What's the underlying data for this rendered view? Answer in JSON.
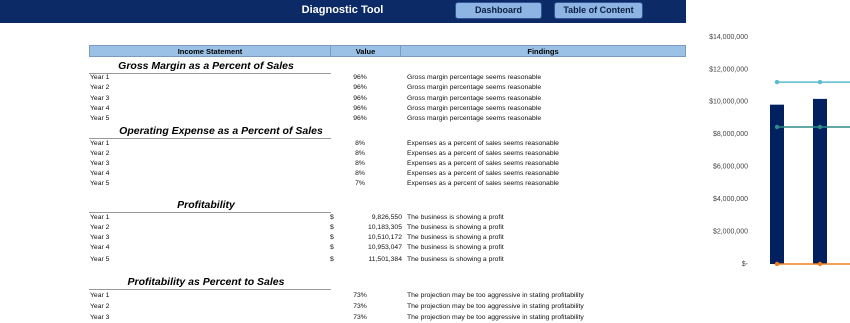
{
  "header": {
    "title": "Diagnostic Tool",
    "buttons": [
      "Dashboard",
      "Table of Content"
    ]
  },
  "table": {
    "columns": [
      "Income Statement",
      "Value",
      "Findings"
    ],
    "sections": [
      {
        "title": "Gross Margin as a Percent of Sales",
        "rows": [
          [
            "Year 1",
            "96%",
            "Gross margin percentage seems reasonable"
          ],
          [
            "Year 2",
            "96%",
            "Gross margin percentage seems reasonable"
          ],
          [
            "Year 3",
            "96%",
            "Gross margin percentage seems reasonable"
          ],
          [
            "Year 4",
            "96%",
            "Gross margin percentage seems reasonable"
          ],
          [
            "Year 5",
            "96%",
            "Gross margin percentage seems reasonable"
          ]
        ]
      },
      {
        "title": "Operating Expense as a Percent of Sales",
        "rows": [
          [
            "Year 1",
            "8%",
            "Expenses as a percent of sales seems reasonable"
          ],
          [
            "Year 2",
            "8%",
            "Expenses as a percent of sales seems reasonable"
          ],
          [
            "Year 3",
            "8%",
            "Expenses as a percent of sales seems reasonable"
          ],
          [
            "Year 4",
            "8%",
            "Expenses as a percent of sales seems reasonable"
          ],
          [
            "Year 5",
            "7%",
            "Expenses as a percent of sales seems reasonable"
          ]
        ]
      },
      {
        "title": "Profitability",
        "currency": "$",
        "rows": [
          [
            "Year 1",
            "9,826,550",
            "The business is showing a profit"
          ],
          [
            "Year 2",
            "10,183,305",
            "The business is showing a profit"
          ],
          [
            "Year 3",
            "10,510,172",
            "The business is showing a profit"
          ],
          [
            "Year 4",
            "10,953,047",
            "The business is showing a profit"
          ],
          [
            "Year 5",
            "11,501,384",
            "The business is showing a profit"
          ]
        ]
      },
      {
        "title": "Profitability as Percent to Sales",
        "rows": [
          [
            "Year 1",
            "73%",
            "The projection may be too aggressive in stating profitability"
          ],
          [
            "Year 2",
            "73%",
            "The projection may be too aggressive in stating profitability"
          ],
          [
            "Year 3",
            "73%",
            "The projection may be too aggressive in stating profitability"
          ]
        ]
      }
    ]
  },
  "chart_data": {
    "type": "bar",
    "categories": [
      null,
      null
    ],
    "series": [
      {
        "type": "bar",
        "color": "#002060",
        "values": [
          9826550,
          10183305
        ]
      },
      {
        "type": "line",
        "color": "#5bbcd0",
        "values": [
          11220000,
          11220000
        ]
      },
      {
        "type": "line",
        "color": "#2e8b87",
        "values": [
          8450000,
          8450000
        ]
      },
      {
        "type": "line",
        "color": "#f07f1f",
        "values": [
          0,
          0
        ]
      }
    ],
    "ylim": [
      0,
      14000000
    ],
    "yticks": [
      {
        "value": 0,
        "label": "$-"
      },
      {
        "value": 2000000,
        "label": "$2,000,000"
      },
      {
        "value": 4000000,
        "label": "$4,000,000"
      },
      {
        "value": 6000000,
        "label": "$6,000,000"
      },
      {
        "value": 8000000,
        "label": "$8,000,000"
      },
      {
        "value": 10000000,
        "label": "$10,000,000"
      },
      {
        "value": 12000000,
        "label": "$12,000,000"
      },
      {
        "value": 14000000,
        "label": "$14,000,000"
      }
    ]
  }
}
